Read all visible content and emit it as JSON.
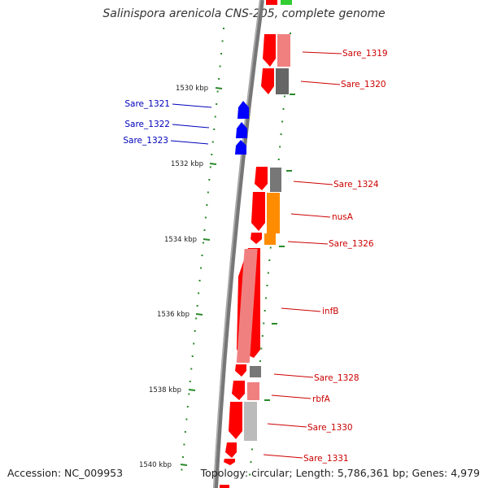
{
  "title": "Salinispora arenicola CNS-205, complete genome",
  "accession": "Accession: NC_009953",
  "summary": "Topology: circular; Length: 5,786,361 bp; Genes: 4,979",
  "colors": {
    "forward": "#ff0000",
    "reverse": "#0000ff",
    "label_red": "#cc0000",
    "label_blue": "#0000bb",
    "tick": "#2a8a2a",
    "backbone": "#777777"
  },
  "kbp_ticks": [
    {
      "label": "1530 kbp"
    },
    {
      "label": "1532 kbp"
    },
    {
      "label": "1534 kbp"
    },
    {
      "label": "1536 kbp"
    },
    {
      "label": "1538 kbp"
    },
    {
      "label": "1540 kbp"
    }
  ],
  "genes_right": [
    {
      "label": "Sare_1319"
    },
    {
      "label": "Sare_1320"
    },
    {
      "label": "Sare_1324"
    },
    {
      "label": "nusA"
    },
    {
      "label": "Sare_1326"
    },
    {
      "label": "infB"
    },
    {
      "label": "Sare_1328"
    },
    {
      "label": "rbfA"
    },
    {
      "label": "Sare_1330"
    },
    {
      "label": "Sare_1331"
    }
  ],
  "genes_left": [
    {
      "label": "Sare_1321"
    },
    {
      "label": "Sare_1322"
    },
    {
      "label": "Sare_1323"
    }
  ]
}
